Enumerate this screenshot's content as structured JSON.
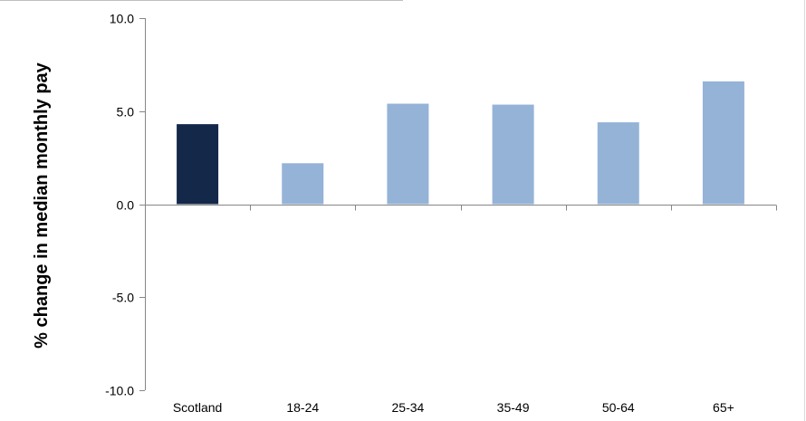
{
  "chart_data": {
    "type": "bar",
    "title": "",
    "xlabel": "",
    "ylabel": "% change in median monthly pay",
    "categories": [
      "Scotland",
      "18-24",
      "25-34",
      "35-49",
      "50-64",
      "65+"
    ],
    "values": [
      4.3,
      2.2,
      5.4,
      5.35,
      4.4,
      6.6
    ],
    "ylim": [
      -10,
      10
    ],
    "yticks": [
      -10,
      -5,
      0,
      5,
      10
    ],
    "ytick_labels": [
      "-10.0",
      "-5.0",
      "0.0",
      "5.0",
      "10.0"
    ],
    "grid": false,
    "legend": "none",
    "colors": {
      "highlight": "#14284A",
      "bar": "#95B3D7",
      "axis": "#868686",
      "text": "#000000"
    }
  }
}
